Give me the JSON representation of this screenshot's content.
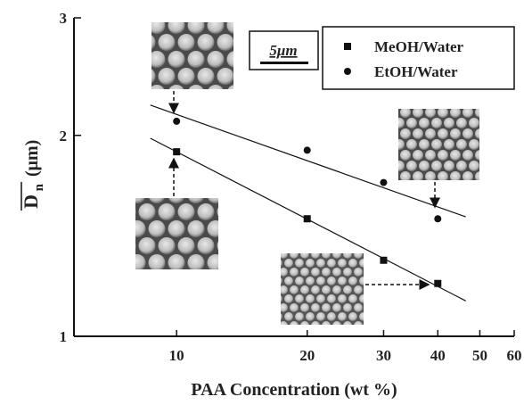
{
  "chart_data": {
    "type": "scatter",
    "x_label": "PAA Concentration (wt %)",
    "y_label_symbol": "D",
    "y_label_subscript": "n",
    "y_label_unit": "(μm)",
    "scale_bar_label": "5μm",
    "x_log": true,
    "y_log": true,
    "xlim": [
      5.8,
      60
    ],
    "ylim": [
      1,
      3
    ],
    "xticks": [
      10,
      20,
      30,
      40,
      50,
      60
    ],
    "yticks": [
      1,
      2,
      3
    ],
    "legend_position": "upper right",
    "series": [
      {
        "name": "MeOH/Water",
        "marker": "square",
        "color": "#111111",
        "x": [
          10,
          20,
          30,
          40
        ],
        "values": [
          1.89,
          1.5,
          1.3,
          1.2
        ],
        "fit_x": [
          8.7,
          46.4
        ],
        "fit_values": [
          1.98,
          1.13
        ]
      },
      {
        "name": "EtOH/Water",
        "marker": "circle",
        "color": "#111111",
        "x": [
          10,
          20,
          30,
          40
        ],
        "values": [
          2.1,
          1.9,
          1.7,
          1.5
        ],
        "fit_x": [
          8.7,
          46.4
        ],
        "fit_values": [
          2.22,
          1.51
        ]
      }
    ]
  }
}
